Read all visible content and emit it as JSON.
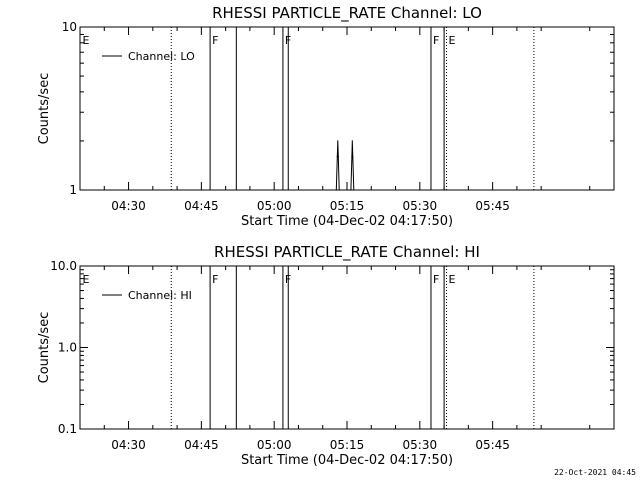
{
  "chart_data": [
    {
      "type": "line",
      "title": "RHESSI PARTICLE_RATE Channel: LO",
      "xlabel": "Start Time (04-Dec-02 04:17:50)",
      "ylabel": "Counts/sec",
      "yscale": "log",
      "ylim": [
        1,
        10
      ],
      "xlim_minutes": [
        260,
        370
      ],
      "x_ticks": [
        {
          "minute": 270,
          "label": "04:30"
        },
        {
          "minute": 285,
          "label": "04:45"
        },
        {
          "minute": 300,
          "label": "05:00"
        },
        {
          "minute": 315,
          "label": "05:15"
        },
        {
          "minute": 330,
          "label": "05:30"
        },
        {
          "minute": 345,
          "label": "05:45"
        }
      ],
      "y_ticks": [
        {
          "value": 1,
          "label": "1"
        },
        {
          "value": 10,
          "label": "10"
        }
      ],
      "legend": {
        "position": "top-left",
        "entries": [
          "Channel: LO"
        ]
      },
      "series": [
        {
          "name": "Channel: LO",
          "points": [
            {
              "x": 312.8,
              "y": 1
            },
            {
              "x": 313.0,
              "y": 1.6
            },
            {
              "x": 313.1,
              "y": 2.0
            },
            {
              "x": 313.2,
              "y": 1.6
            },
            {
              "x": 313.4,
              "y": 1
            },
            {
              "x": 315.8,
              "y": 1
            },
            {
              "x": 316.0,
              "y": 1.6
            },
            {
              "x": 316.1,
              "y": 2.0
            },
            {
              "x": 316.2,
              "y": 1.6
            },
            {
              "x": 316.4,
              "y": 1
            }
          ]
        }
      ],
      "solid_lines_minutes": [
        286.8,
        292.2,
        301.8,
        302.9,
        332.3,
        335.0
      ],
      "dotted_lines_minutes": [
        278.8,
        335.5,
        353.5
      ],
      "markers": [
        {
          "minute": 260.1,
          "label": "E"
        },
        {
          "minute": 286.8,
          "label": "F"
        },
        {
          "minute": 301.8,
          "label": "F"
        },
        {
          "minute": 332.3,
          "label": "F"
        },
        {
          "minute": 335.5,
          "label": "E"
        }
      ]
    },
    {
      "type": "line",
      "title": "RHESSI PARTICLE_RATE Channel: HI",
      "xlabel": "Start Time (04-Dec-02 04:17:50)",
      "ylabel": "Counts/sec",
      "yscale": "log",
      "ylim": [
        0.1,
        10
      ],
      "xlim_minutes": [
        260,
        370
      ],
      "x_ticks": [
        {
          "minute": 270,
          "label": "04:30"
        },
        {
          "minute": 285,
          "label": "04:45"
        },
        {
          "minute": 300,
          "label": "05:00"
        },
        {
          "minute": 315,
          "label": "05:15"
        },
        {
          "minute": 330,
          "label": "05:30"
        },
        {
          "minute": 345,
          "label": "05:45"
        }
      ],
      "y_ticks": [
        {
          "value": 0.1,
          "label": "0.1"
        },
        {
          "value": 1,
          "label": "1.0"
        },
        {
          "value": 10,
          "label": "10.0"
        }
      ],
      "legend": {
        "position": "top-left",
        "entries": [
          "Channel: HI"
        ]
      },
      "series": [],
      "solid_lines_minutes": [
        286.8,
        292.2,
        301.8,
        302.9,
        332.3,
        335.0
      ],
      "dotted_lines_minutes": [
        278.8,
        335.5,
        353.5
      ],
      "markers": [
        {
          "minute": 260.1,
          "label": "E"
        },
        {
          "minute": 286.8,
          "label": "F"
        },
        {
          "minute": 301.8,
          "label": "F"
        },
        {
          "minute": 332.3,
          "label": "F"
        },
        {
          "minute": 335.5,
          "label": "E"
        }
      ]
    }
  ],
  "footer": {
    "timestamp": "22-Oct-2021 04:45"
  }
}
